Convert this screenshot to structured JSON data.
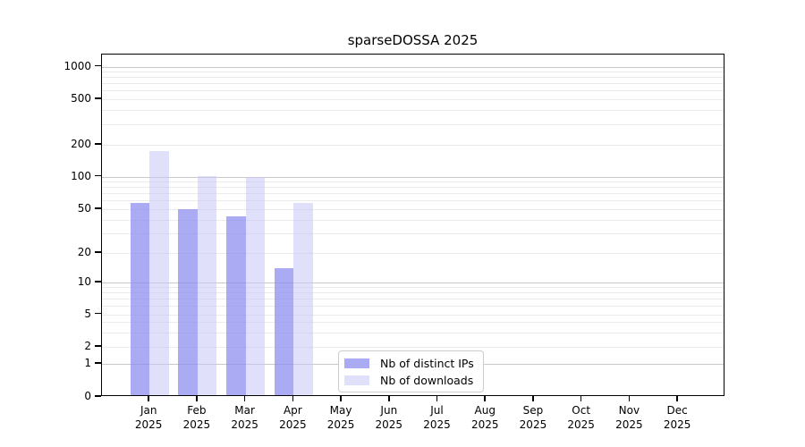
{
  "chart_data": {
    "type": "bar",
    "title": "sparseDOSSA 2025",
    "categories": [
      "Jan",
      "Feb",
      "Mar",
      "Apr",
      "May",
      "Jun",
      "Jul",
      "Aug",
      "Sep",
      "Oct",
      "Nov",
      "Dec"
    ],
    "year": "2025",
    "series": [
      {
        "name": "Nb of distinct IPs",
        "color": "rgba(138,138,240,0.72)",
        "values": [
          57,
          50,
          43,
          14,
          0,
          0,
          0,
          0,
          0,
          0,
          0,
          0
        ]
      },
      {
        "name": "Nb of downloads",
        "color": "rgba(199,199,248,0.55)",
        "values": [
          175,
          102,
          100,
          57,
          0,
          0,
          0,
          0,
          0,
          0,
          0,
          0
        ]
      }
    ],
    "y_ticks": [
      0,
      1,
      2,
      5,
      10,
      20,
      50,
      100,
      200,
      500,
      1000
    ],
    "y_major_ticks": [
      1,
      10,
      100,
      1000
    ],
    "y_minor_gridlines": [
      2,
      3,
      4,
      5,
      6,
      7,
      8,
      9,
      20,
      30,
      40,
      50,
      60,
      70,
      80,
      90,
      200,
      300,
      400,
      500,
      600,
      700,
      800,
      900
    ],
    "ylim": [
      0,
      1000
    ],
    "y_scale": "log-with-zero",
    "grid": true,
    "legend_position": "lower-center",
    "colors": {
      "major_grid": "#c9c9c9",
      "minor_grid": "#ebebeb",
      "axis": "#000000",
      "background": "#ffffff"
    }
  }
}
